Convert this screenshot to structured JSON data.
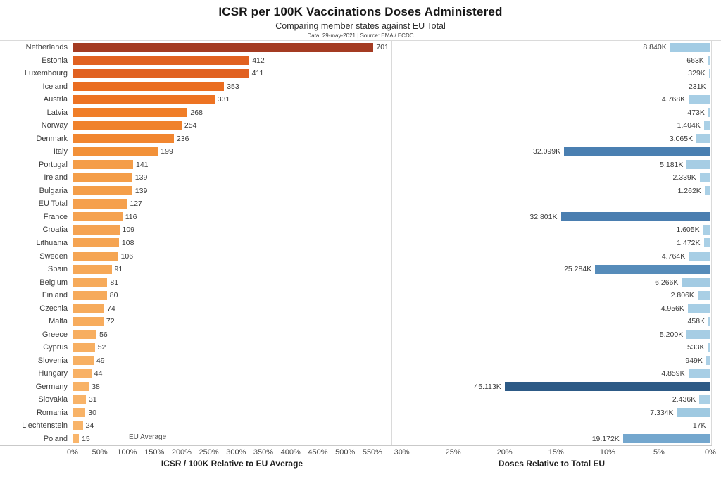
{
  "header": {
    "title": "ICSR per 100K Vaccinations Doses Administered",
    "subtitle": "Comparing member states against EU Total",
    "meta": "Data: 29-may-2021 | Source: EMA / ECDC"
  },
  "chart_data": {
    "type": "bar",
    "orientation": "horizontal",
    "left_panel": {
      "title": "ICSR / 100K Relative to EU Average",
      "axis_ticks": [
        "0%",
        "50%",
        "100%",
        "150%",
        "200%",
        "250%",
        "300%",
        "350%",
        "400%",
        "450%",
        "500%",
        "550%"
      ],
      "axis_max_pct": 585,
      "eu_average_icsr": 127,
      "reference_line_pct": 100,
      "reference_line_label": "EU Average",
      "reference_line_style": "dashed-gray",
      "grid": false
    },
    "right_panel": {
      "title": "Doses Relative to Total EU",
      "axis_ticks": [
        "30%",
        "25%",
        "20%",
        "15%",
        "10%",
        "5%",
        "0%"
      ],
      "axis_max_pct": 31,
      "reversed_axis": true,
      "grid": false
    },
    "rows": [
      {
        "country": "Netherlands",
        "icsr": 701,
        "icsr_color": "#a43b22",
        "doses_label": "8.840K",
        "doses_pct": 3.92,
        "doses_color": "#a3cce4"
      },
      {
        "country": "Estonia",
        "icsr": 412,
        "icsr_color": "#e16120",
        "doses_label": "663K",
        "doses_pct": 0.29,
        "doses_color": "#add1e6"
      },
      {
        "country": "Luxembourg",
        "icsr": 411,
        "icsr_color": "#e16121",
        "doses_label": "329K",
        "doses_pct": 0.15,
        "doses_color": "#add1e6"
      },
      {
        "country": "Iceland",
        "icsr": 353,
        "icsr_color": "#ea6d21",
        "doses_label": "231K",
        "doses_pct": 0.1,
        "doses_color": "#add1e6"
      },
      {
        "country": "Austria",
        "icsr": 331,
        "icsr_color": "#ed7323",
        "doses_label": "4.768K",
        "doses_pct": 2.11,
        "doses_color": "#a7cee5"
      },
      {
        "country": "Latvia",
        "icsr": 268,
        "icsr_color": "#f07e28",
        "doses_label": "473K",
        "doses_pct": 0.21,
        "doses_color": "#add1e6"
      },
      {
        "country": "Norway",
        "icsr": 254,
        "icsr_color": "#f0822c",
        "doses_label": "1.404K",
        "doses_pct": 0.62,
        "doses_color": "#aad0e6"
      },
      {
        "country": "Denmark",
        "icsr": 236,
        "icsr_color": "#f18630",
        "doses_label": "3.065K",
        "doses_pct": 1.36,
        "doses_color": "#a9cfe5"
      },
      {
        "country": "Italy",
        "icsr": 199,
        "icsr_color": "#f29139",
        "doses_label": "32.099K",
        "doses_pct": 14.23,
        "doses_color": "#4a7fb1"
      },
      {
        "country": "Portugal",
        "icsr": 141,
        "icsr_color": "#f49d48",
        "doses_label": "5.181K",
        "doses_pct": 2.3,
        "doses_color": "#a6cde4"
      },
      {
        "country": "Ireland",
        "icsr": 139,
        "icsr_color": "#f49e49",
        "doses_label": "2.339K",
        "doses_pct": 1.04,
        "doses_color": "#aad0e6"
      },
      {
        "country": "Bulgaria",
        "icsr": 139,
        "icsr_color": "#f49e49",
        "doses_label": "1.262K",
        "doses_pct": 0.56,
        "doses_color": "#aad0e6"
      },
      {
        "country": "EU Total",
        "icsr": 127,
        "icsr_color": "#f5a04d",
        "doses_label": null,
        "doses_pct": null,
        "doses_color": null
      },
      {
        "country": "France",
        "icsr": 116,
        "icsr_color": "#f5a250",
        "doses_label": "32.801K",
        "doses_pct": 14.54,
        "doses_color": "#4a7eb0"
      },
      {
        "country": "Croatia",
        "icsr": 109,
        "icsr_color": "#f5a352",
        "doses_label": "1.605K",
        "doses_pct": 0.71,
        "doses_color": "#aad0e6"
      },
      {
        "country": "Lithuania",
        "icsr": 108,
        "icsr_color": "#f5a452",
        "doses_label": "1.472K",
        "doses_pct": 0.65,
        "doses_color": "#aad0e6"
      },
      {
        "country": "Sweden",
        "icsr": 106,
        "icsr_color": "#f5a553",
        "doses_label": "4.764K",
        "doses_pct": 2.11,
        "doses_color": "#a7cee5"
      },
      {
        "country": "Spain",
        "icsr": 91,
        "icsr_color": "#f6a857",
        "doses_label": "25.284K",
        "doses_pct": 11.21,
        "doses_color": "#568cba"
      },
      {
        "country": "Belgium",
        "icsr": 81,
        "icsr_color": "#f6aa5a",
        "doses_label": "6.266K",
        "doses_pct": 2.78,
        "doses_color": "#a3cbe3"
      },
      {
        "country": "Finland",
        "icsr": 80,
        "icsr_color": "#f6aa5b",
        "doses_label": "2.806K",
        "doses_pct": 1.24,
        "doses_color": "#a9cfe5"
      },
      {
        "country": "Czechia",
        "icsr": 74,
        "icsr_color": "#f6ab5c",
        "doses_label": "4.956K",
        "doses_pct": 2.2,
        "doses_color": "#a7cee5"
      },
      {
        "country": "Malta",
        "icsr": 72,
        "icsr_color": "#f7ac5d",
        "doses_label": "458K",
        "doses_pct": 0.2,
        "doses_color": "#add1e6"
      },
      {
        "country": "Greece",
        "icsr": 56,
        "icsr_color": "#f7ae60",
        "doses_label": "5.200K",
        "doses_pct": 2.31,
        "doses_color": "#a6cde4"
      },
      {
        "country": "Cyprus",
        "icsr": 52,
        "icsr_color": "#f7af62",
        "doses_label": "533K",
        "doses_pct": 0.24,
        "doses_color": "#add1e6"
      },
      {
        "country": "Slovenia",
        "icsr": 49,
        "icsr_color": "#f7b063",
        "doses_label": "949K",
        "doses_pct": 0.42,
        "doses_color": "#acd0e6"
      },
      {
        "country": "Hungary",
        "icsr": 44,
        "icsr_color": "#f8b165",
        "doses_label": "4.859K",
        "doses_pct": 2.15,
        "doses_color": "#a7cee5"
      },
      {
        "country": "Germany",
        "icsr": 38,
        "icsr_color": "#f8b266",
        "doses_label": "45.113K",
        "doses_pct": 20.0,
        "doses_color": "#2d5a86"
      },
      {
        "country": "Slovakia",
        "icsr": 31,
        "icsr_color": "#f8b368",
        "doses_label": "2.436K",
        "doses_pct": 1.08,
        "doses_color": "#aad0e6"
      },
      {
        "country": "Romania",
        "icsr": 30,
        "icsr_color": "#f8b368",
        "doses_label": "7.334K",
        "doses_pct": 3.25,
        "doses_color": "#9fc9e1"
      },
      {
        "country": "Liechtenstein",
        "icsr": 24,
        "icsr_color": "#f8b469",
        "doses_label": "17K",
        "doses_pct": 0.01,
        "doses_color": "#add1e6"
      },
      {
        "country": "Poland",
        "icsr": 15,
        "icsr_color": "#f9b56b",
        "doses_label": "19.172K",
        "doses_pct": 8.5,
        "doses_color": "#74a7ce"
      }
    ]
  }
}
